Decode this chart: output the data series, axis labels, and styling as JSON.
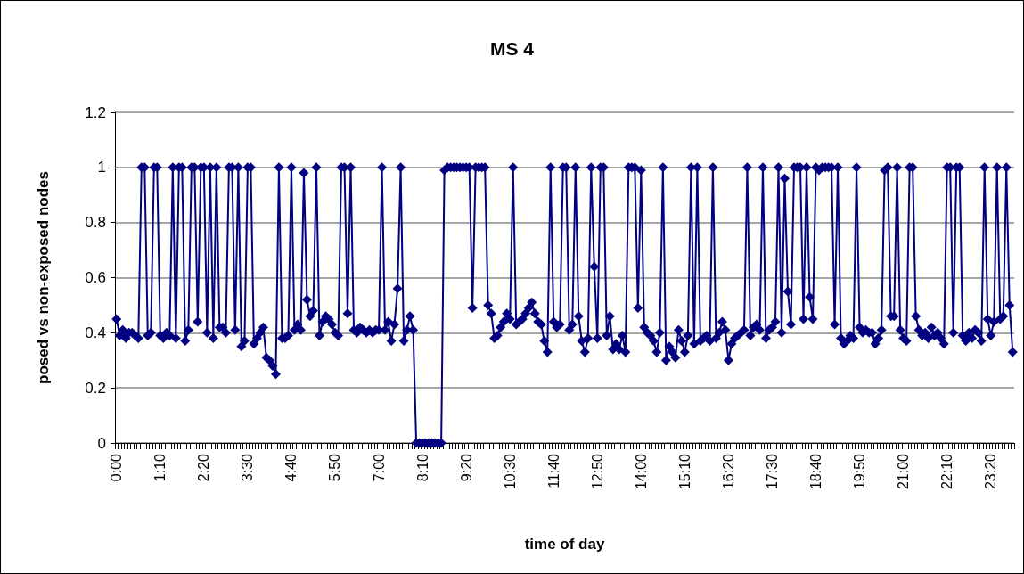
{
  "chart_data": {
    "type": "line",
    "title": "MS 4",
    "xlabel": "time of day",
    "ylabel": "posed vs non-exposed nodes",
    "categories": [
      "0:00",
      null,
      null,
      null,
      null,
      null,
      null,
      null,
      null,
      null,
      null,
      null,
      null,
      null,
      "1:10",
      null,
      null,
      null,
      null,
      null,
      null,
      null,
      null,
      null,
      null,
      null,
      null,
      null,
      "2:20",
      null,
      null,
      null,
      null,
      null,
      null,
      null,
      null,
      null,
      null,
      null,
      null,
      null,
      "3:30",
      null,
      null,
      null,
      null,
      null,
      null,
      null,
      null,
      null,
      null,
      null,
      null,
      null,
      "4:40",
      null,
      null,
      null,
      null,
      null,
      null,
      null,
      null,
      null,
      null,
      null,
      null,
      null,
      "5:50",
      null,
      null,
      null,
      null,
      null,
      null,
      null,
      null,
      null,
      null,
      null,
      null,
      null,
      "7:00",
      null,
      null,
      null,
      null,
      null,
      null,
      null,
      null,
      null,
      null,
      null,
      null,
      null,
      "8:10",
      null,
      null,
      null,
      null,
      null,
      null,
      null,
      null,
      null,
      null,
      null,
      null,
      null,
      "9:20",
      null,
      null,
      null,
      null,
      null,
      null,
      null,
      null,
      null,
      null,
      null,
      null,
      null,
      "10:30",
      null,
      null,
      null,
      null,
      null,
      null,
      null,
      null,
      null,
      null,
      null,
      null,
      null,
      "11:40",
      null,
      null,
      null,
      null,
      null,
      null,
      null,
      null,
      null,
      null,
      null,
      null,
      null,
      "12:50",
      null,
      null,
      null,
      null,
      null,
      null,
      null,
      null,
      null,
      null,
      null,
      null,
      null,
      "14:00",
      null,
      null,
      null,
      null,
      null,
      null,
      null,
      null,
      null,
      null,
      null,
      null,
      null,
      "15:10",
      null,
      null,
      null,
      null,
      null,
      null,
      null,
      null,
      null,
      null,
      null,
      null,
      null,
      "16:20",
      null,
      null,
      null,
      null,
      null,
      null,
      null,
      null,
      null,
      null,
      null,
      null,
      null,
      "17:30",
      null,
      null,
      null,
      null,
      null,
      null,
      null,
      null,
      null,
      null,
      null,
      null,
      null,
      "18:40",
      null,
      null,
      null,
      null,
      null,
      null,
      null,
      null,
      null,
      null,
      null,
      null,
      null,
      "19:50",
      null,
      null,
      null,
      null,
      null,
      null,
      null,
      null,
      null,
      null,
      null,
      null,
      null,
      "21:00",
      null,
      null,
      null,
      null,
      null,
      null,
      null,
      null,
      null,
      null,
      null,
      null,
      null,
      "22:10",
      null,
      null,
      null,
      null,
      null,
      null,
      null,
      null,
      null,
      null,
      null,
      null,
      null,
      "23:20",
      null,
      null,
      null,
      null,
      null,
      null,
      null
    ],
    "series": [
      {
        "color": "#000080",
        "values": [
          0.45,
          0.39,
          0.41,
          0.38,
          0.4,
          0.4,
          0.39,
          0.38,
          1,
          1,
          0.39,
          0.4,
          1,
          1,
          0.39,
          0.38,
          0.4,
          0.39,
          1,
          0.38,
          1,
          1,
          0.37,
          0.41,
          1,
          1,
          0.44,
          1,
          1,
          0.4,
          1,
          0.38,
          1,
          0.42,
          0.42,
          0.4,
          1,
          1,
          0.41,
          1,
          0.35,
          0.37,
          1,
          1,
          0.36,
          0.38,
          0.4,
          0.42,
          0.31,
          0.3,
          0.28,
          0.25,
          1,
          0.38,
          0.38,
          0.39,
          1,
          0.41,
          0.43,
          0.41,
          0.98,
          0.52,
          0.46,
          0.48,
          1,
          0.39,
          0.44,
          0.46,
          0.45,
          0.43,
          0.4,
          0.39,
          1,
          1,
          0.47,
          1,
          0.41,
          0.4,
          0.42,
          0.41,
          0.4,
          0.41,
          0.4,
          0.41,
          0.41,
          1,
          0.41,
          0.44,
          0.37,
          0.43,
          0.56,
          1,
          0.37,
          0.41,
          0.46,
          0.41,
          0,
          0,
          0,
          0,
          0,
          0,
          0,
          0,
          0,
          0.99,
          1,
          1,
          1,
          1,
          1,
          1,
          1,
          1,
          0.49,
          1,
          1,
          1,
          1,
          0.5,
          0.47,
          0.38,
          0.39,
          0.42,
          0.44,
          0.47,
          0.45,
          1,
          0.43,
          0.44,
          0.45,
          0.47,
          0.49,
          0.51,
          0.47,
          0.44,
          0.43,
          0.37,
          0.33,
          1,
          0.44,
          0.42,
          0.43,
          1,
          1,
          0.41,
          0.43,
          1,
          0.46,
          0.37,
          0.33,
          0.38,
          1,
          0.64,
          0.38,
          1,
          1,
          0.39,
          0.46,
          0.34,
          0.36,
          0.34,
          0.39,
          0.33,
          1,
          1,
          1,
          0.49,
          0.99,
          0.42,
          0.4,
          0.39,
          0.37,
          0.33,
          0.4,
          1,
          0.3,
          0.35,
          0.33,
          0.31,
          0.41,
          0.37,
          0.33,
          0.39,
          1,
          0.36,
          1,
          0.37,
          0.38,
          0.39,
          0.37,
          1,
          0.38,
          0.4,
          0.44,
          0.41,
          0.3,
          0.36,
          0.38,
          0.39,
          0.4,
          0.41,
          1,
          0.39,
          0.42,
          0.43,
          0.41,
          1,
          0.38,
          0.41,
          0.42,
          0.44,
          1,
          0.4,
          0.96,
          0.55,
          0.43,
          1,
          1,
          1,
          0.45,
          1,
          0.53,
          0.45,
          1,
          0.99,
          1,
          1,
          1,
          1,
          0.43,
          1,
          0.38,
          0.36,
          0.37,
          0.39,
          0.38,
          1,
          0.42,
          0.4,
          0.41,
          0.4,
          0.4,
          0.36,
          0.38,
          0.41,
          0.99,
          1,
          0.46,
          0.46,
          1,
          0.41,
          0.38,
          0.37,
          1,
          1,
          0.46,
          0.41,
          0.39,
          0.4,
          0.38,
          0.42,
          0.39,
          0.4,
          0.38,
          0.36,
          1,
          1,
          0.4,
          1,
          1,
          0.39,
          0.37,
          0.4,
          0.38,
          0.41,
          0.4,
          0.37,
          1,
          0.45,
          0.39,
          0.44,
          1,
          0.45,
          0.46,
          1,
          0.5,
          0.33
        ]
      }
    ],
    "ylim": [
      0,
      1.2
    ],
    "yticks": [
      0,
      0.2,
      0.4,
      0.6,
      0.8,
      1,
      1.2
    ],
    "grid": "y",
    "marker": "diamond",
    "line_style": "solid"
  }
}
